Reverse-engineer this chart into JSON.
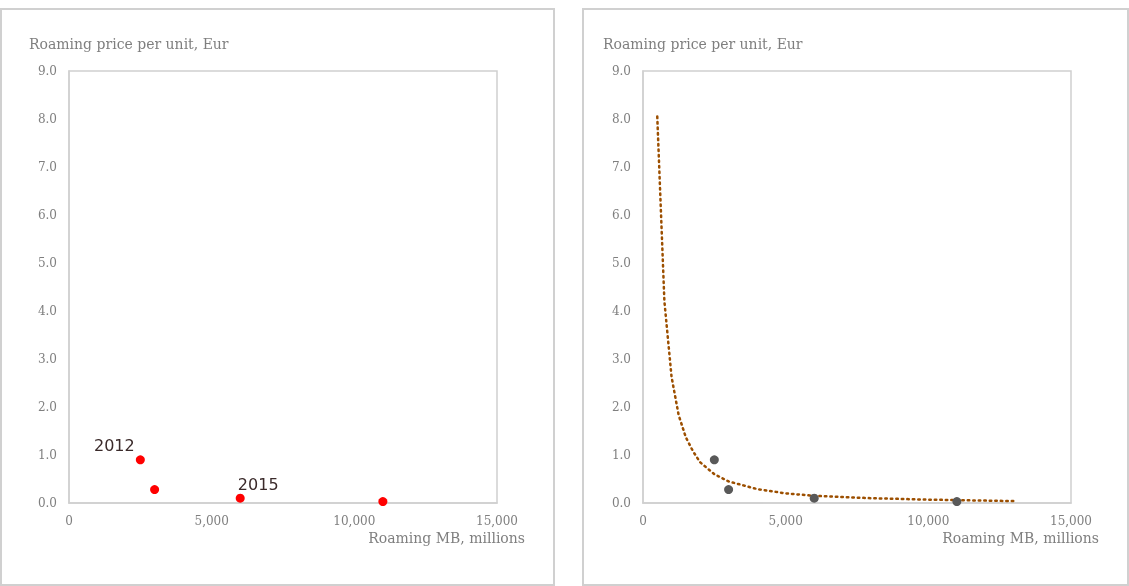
{
  "chart_data": [
    {
      "type": "scatter",
      "xlabel": "Roaming MB, millions",
      "ylabel": "Roaming price per unit, Eur",
      "grid": false,
      "marker": "circle",
      "series": [
        {
          "color": "#ff0000",
          "x": [
            2500,
            3000,
            6000,
            11000
          ],
          "values": [
            0.9,
            0.28,
            0.1,
            0.03
          ]
        }
      ],
      "annotations": [
        {
          "text": "2012",
          "x": 2500,
          "y": 0.9
        },
        {
          "text": "2015",
          "x": 6000,
          "y": 0.1
        }
      ],
      "xlim": [
        0,
        15000
      ],
      "xticks": [
        0,
        {
          "value": 5000,
          "label": "5,000"
        },
        {
          "value": 10000,
          "label": "10,000"
        },
        {
          "value": 15000,
          "label": "15,000"
        }
      ],
      "ylim": [
        0,
        9
      ],
      "yticks": [
        {
          "value": 0,
          "label": "0.0"
        },
        {
          "value": 1,
          "label": "1.0"
        },
        {
          "value": 2,
          "label": "2.0"
        },
        {
          "value": 3,
          "label": "3.0"
        },
        {
          "value": 4,
          "label": "4.0"
        },
        {
          "value": 5,
          "label": "5.0"
        },
        {
          "value": 6,
          "label": "6.0"
        },
        {
          "value": 7,
          "label": "7.0"
        },
        {
          "value": 8,
          "label": "8.0"
        },
        {
          "value": 9,
          "label": "9.0"
        }
      ]
    },
    {
      "type": "scatter",
      "xlabel": "Roaming MB, millions",
      "ylabel": "Roaming price per unit, Eur",
      "grid": false,
      "marker": "circle",
      "series": [
        {
          "color": "#595959",
          "x": [
            2500,
            3000,
            6000,
            11000
          ],
          "values": [
            0.9,
            0.28,
            0.1,
            0.03
          ]
        },
        {
          "type": "line",
          "line_style": "dotted",
          "marker": "none",
          "color": "#9c4f00",
          "x": [
            500,
            750,
            1000,
            1250,
            1500,
            1750,
            2000,
            2500,
            3000,
            4000,
            5000,
            6000,
            8000,
            10000,
            13000
          ],
          "values": [
            8.05,
            4.2,
            2.63,
            1.83,
            1.37,
            1.08,
            0.85,
            0.6,
            0.45,
            0.29,
            0.2,
            0.15,
            0.1,
            0.07,
            0.04
          ]
        }
      ],
      "xlim": [
        0,
        15000
      ],
      "xticks": [
        0,
        {
          "value": 5000,
          "label": "5,000"
        },
        {
          "value": 10000,
          "label": "10,000"
        },
        {
          "value": 15000,
          "label": "15,000"
        }
      ],
      "ylim": [
        0,
        9
      ],
      "yticks": [
        {
          "value": 0,
          "label": "0.0"
        },
        {
          "value": 1,
          "label": "1.0"
        },
        {
          "value": 2,
          "label": "2.0"
        },
        {
          "value": 3,
          "label": "3.0"
        },
        {
          "value": 4,
          "label": "4.0"
        },
        {
          "value": 5,
          "label": "5.0"
        },
        {
          "value": 6,
          "label": "6.0"
        },
        {
          "value": 7,
          "label": "7.0"
        },
        {
          "value": 8,
          "label": "8.0"
        },
        {
          "value": 9,
          "label": "9.0"
        }
      ]
    }
  ]
}
